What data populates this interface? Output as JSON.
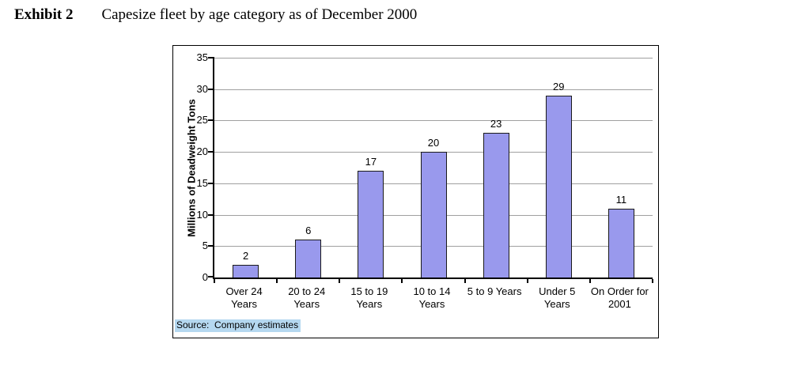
{
  "header": {
    "exhibit_label": "Exhibit 2",
    "title": "Capesize fleet by age category as of December 2000"
  },
  "chart_data": {
    "type": "bar",
    "title": "Capesize fleet by age category as of December 2000",
    "categories": [
      "Over 24\nYears",
      "20 to 24\nYears",
      "15 to 19\nYears",
      "10 to 14\nYears",
      "5 to 9 Years",
      "Under 5\nYears",
      "On Order for\n2001"
    ],
    "values": [
      2,
      6,
      17,
      20,
      23,
      29,
      11
    ],
    "bar_value_labels": [
      "2",
      "6",
      "17",
      "20",
      "23",
      "29",
      "11"
    ],
    "xlabel": "",
    "ylabel": "Millions of Deadweight Tons",
    "ylim": [
      0,
      35
    ],
    "yticks": [
      0,
      5,
      10,
      15,
      20,
      25,
      30,
      35
    ],
    "grid": "horizontal",
    "legend": "none",
    "source": "Source:  Company estimates",
    "colors": {
      "bar_fill": "#9999ED",
      "bar_border": "#1a1a1a",
      "gridline": "#A0A0A0",
      "axis": "#000000",
      "source_highlight": "#B5D8F0"
    }
  }
}
